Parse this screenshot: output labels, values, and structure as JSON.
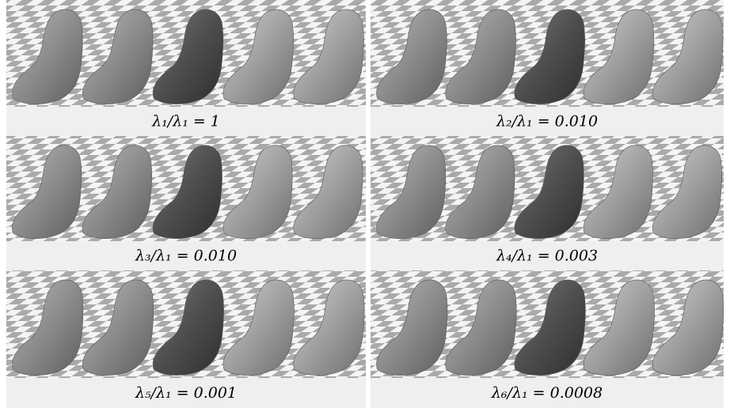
{
  "panels": [
    {
      "caption": "λ₁/λ₁ = 1"
    },
    {
      "caption": "λ₂/λ₁ = 0.010"
    },
    {
      "caption": "λ₃/λ₁ = 0.010"
    },
    {
      "caption": "λ₄/λ₁ = 0.003"
    },
    {
      "caption": "λ₅/λ₁ = 0.001"
    },
    {
      "caption": "λ₆/λ₁ = 0.0008"
    }
  ]
}
